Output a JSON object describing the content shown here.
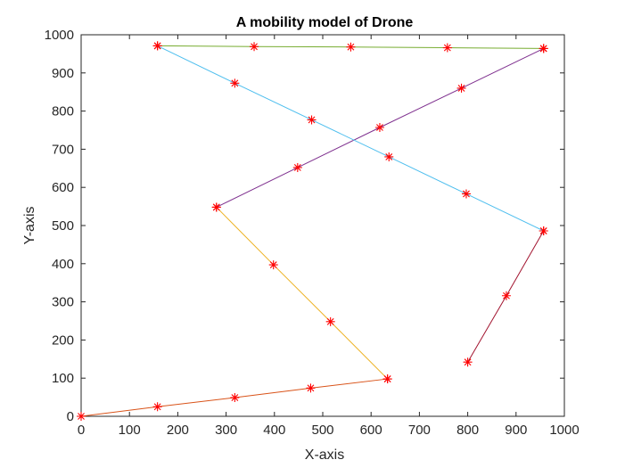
{
  "chart_data": {
    "type": "line",
    "title": "A mobility model of Drone",
    "xlabel": "X-axis",
    "ylabel": "Y-axis",
    "xlim": [
      0,
      1000
    ],
    "ylim": [
      0,
      1000
    ],
    "xticks": [
      0,
      100,
      200,
      300,
      400,
      500,
      600,
      700,
      800,
      900,
      1000
    ],
    "yticks": [
      0,
      100,
      200,
      300,
      400,
      500,
      600,
      700,
      800,
      900,
      1000
    ],
    "grid": false,
    "legend": "none",
    "marker": "*",
    "marker_color": "#ff0000",
    "series": [
      {
        "color": "#d95319",
        "x": [
          0,
          158,
          318,
          475,
          634
        ],
        "y": [
          0,
          25,
          49,
          74,
          98
        ]
      },
      {
        "color": "#edb120",
        "x": [
          634,
          516,
          398,
          280
        ],
        "y": [
          98,
          248,
          397,
          548
        ]
      },
      {
        "color": "#7e2f8e",
        "x": [
          280,
          448,
          618,
          787,
          957
        ],
        "y": [
          548,
          652,
          757,
          860,
          964
        ]
      },
      {
        "color": "#77ac30",
        "x": [
          957,
          758,
          558,
          358,
          158
        ],
        "y": [
          964,
          966,
          968,
          969,
          971
        ]
      },
      {
        "color": "#4dbeee",
        "x": [
          158,
          318,
          477,
          637,
          797,
          957
        ],
        "y": [
          971,
          873,
          777,
          680,
          583,
          486
        ]
      },
      {
        "color": "#a2142f",
        "x": [
          957,
          880,
          800
        ],
        "y": [
          486,
          316,
          142
        ]
      }
    ]
  }
}
